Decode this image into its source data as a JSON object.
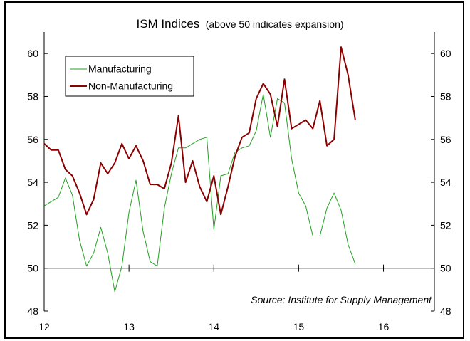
{
  "chart_data": {
    "type": "line",
    "title": "ISM Indices",
    "subtitle": "(above 50 indicates expansion)",
    "source": "Source: Institute for Supply Management",
    "x_ticks": [
      "12",
      "13",
      "14",
      "15",
      "16"
    ],
    "xlim": [
      12,
      16.6
    ],
    "ylim": [
      48,
      61
    ],
    "y_ticks": [
      "48",
      "50",
      "52",
      "54",
      "56",
      "58",
      "60"
    ],
    "y_ticks_right": [
      "48",
      "50",
      "52",
      "54",
      "56",
      "58",
      "60"
    ],
    "reference_line": 50,
    "grid": false,
    "legend": "top-left",
    "series": [
      {
        "name": "Manufacturing",
        "color": "#22a022",
        "x": [
          12.0,
          12.083,
          12.167,
          12.25,
          12.333,
          12.417,
          12.5,
          12.583,
          12.667,
          12.75,
          12.833,
          12.917,
          13.0,
          13.083,
          13.167,
          13.25,
          13.333,
          13.417,
          13.5,
          13.583,
          13.667,
          13.75,
          13.833,
          13.917,
          14.0,
          14.083,
          14.167,
          14.25,
          14.333,
          14.417,
          14.5,
          14.583,
          14.667,
          14.75,
          14.833,
          14.917,
          15.0,
          15.083,
          15.167,
          15.25,
          15.333,
          15.417,
          15.5,
          15.583,
          15.667
        ],
        "values": [
          52.9,
          53.1,
          53.3,
          54.2,
          53.4,
          51.3,
          50.1,
          50.7,
          51.9,
          50.7,
          48.9,
          50.1,
          52.6,
          54.1,
          51.7,
          50.3,
          50.1,
          52.8,
          54.4,
          55.6,
          55.6,
          55.8,
          56.0,
          56.1,
          51.8,
          54.3,
          54.4,
          55.4,
          55.6,
          55.7,
          56.4,
          58.1,
          56.1,
          57.9,
          57.7,
          55.1,
          53.5,
          52.9,
          51.5,
          51.5,
          52.8,
          53.5,
          52.7,
          51.1,
          50.2
        ]
      },
      {
        "name": "Non-Manufacturing",
        "color": "#8b0000",
        "x": [
          12.0,
          12.083,
          12.167,
          12.25,
          12.333,
          12.417,
          12.5,
          12.583,
          12.667,
          12.75,
          12.833,
          12.917,
          13.0,
          13.083,
          13.167,
          13.25,
          13.333,
          13.417,
          13.5,
          13.583,
          13.667,
          13.75,
          13.833,
          13.917,
          14.0,
          14.083,
          14.167,
          14.25,
          14.333,
          14.417,
          14.5,
          14.583,
          14.667,
          14.75,
          14.833,
          14.917,
          15.0,
          15.083,
          15.167,
          15.25,
          15.333,
          15.417,
          15.5,
          15.583,
          15.667
        ],
        "values": [
          55.8,
          55.5,
          55.5,
          54.6,
          54.3,
          53.5,
          52.5,
          53.2,
          54.9,
          54.4,
          54.9,
          55.8,
          55.1,
          55.7,
          55.0,
          53.9,
          53.9,
          53.7,
          54.9,
          57.1,
          54.0,
          55.0,
          53.8,
          53.1,
          54.3,
          52.5,
          53.8,
          55.2,
          56.1,
          56.3,
          57.9,
          58.6,
          58.1,
          56.6,
          58.8,
          56.5,
          56.7,
          56.9,
          56.5,
          57.8,
          55.7,
          56.0,
          60.3,
          59.0,
          56.9
        ]
      }
    ]
  }
}
